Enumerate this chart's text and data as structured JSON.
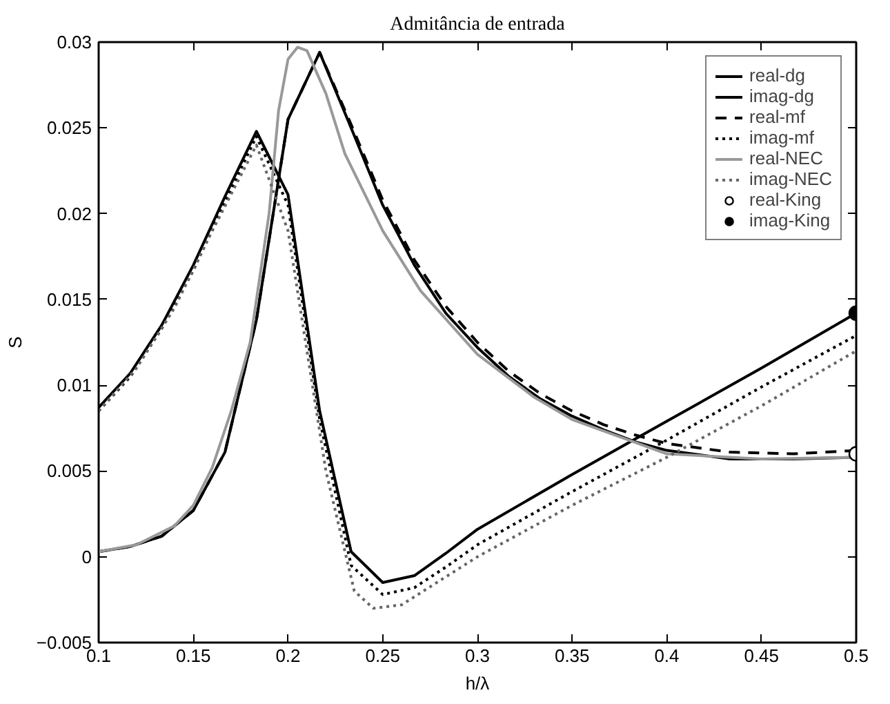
{
  "chart_data": {
    "type": "line",
    "title": "Admitância de entrada",
    "xlabel": "h/λ",
    "ylabel": "S",
    "xlim": [
      0.1,
      0.5
    ],
    "ylim": [
      -0.005,
      0.03
    ],
    "xticks": [
      0.1,
      0.15,
      0.2,
      0.25,
      0.3,
      0.35,
      0.4,
      0.45,
      0.5
    ],
    "yticks": [
      -0.005,
      0,
      0.005,
      0.01,
      0.015,
      0.02,
      0.025,
      0.03
    ],
    "grid": false,
    "legend": "top right",
    "series": [
      {
        "name": "real-dg",
        "color": "#000000",
        "line_style": "solid",
        "x": [
          0.1,
          0.1167,
          0.1333,
          0.15,
          0.1667,
          0.1833,
          0.2,
          0.2167,
          0.2333,
          0.25,
          0.2667,
          0.2833,
          0.3,
          0.3167,
          0.3333,
          0.35,
          0.3667,
          0.3833,
          0.4,
          0.4333,
          0.4667,
          0.5
        ],
        "values": [
          0.0003,
          0.0006,
          0.0012,
          0.0027,
          0.0061,
          0.0138,
          0.0255,
          0.0294,
          0.025,
          0.0205,
          0.017,
          0.0142,
          0.0122,
          0.0105,
          0.0092,
          0.0082,
          0.0074,
          0.0067,
          0.0062,
          0.0057,
          0.0057,
          0.0058
        ]
      },
      {
        "name": "imag-dg",
        "color": "#000000",
        "line_style": "solid",
        "x": [
          0.1,
          0.1167,
          0.1333,
          0.15,
          0.1667,
          0.1833,
          0.2,
          0.2167,
          0.2333,
          0.25,
          0.2667,
          0.2833,
          0.3,
          0.35,
          0.4,
          0.45,
          0.5
        ],
        "values": [
          0.0087,
          0.0107,
          0.0135,
          0.017,
          0.021,
          0.0248,
          0.0211,
          0.0085,
          0.0003,
          -0.0015,
          -0.0011,
          0.0002,
          0.0016,
          0.0048,
          0.0079,
          0.011,
          0.0142
        ]
      },
      {
        "name": "real-mf",
        "color": "#000000",
        "line_style": "dashed",
        "x": [
          0.1,
          0.1167,
          0.1333,
          0.15,
          0.1667,
          0.1833,
          0.2,
          0.2167,
          0.2333,
          0.25,
          0.2667,
          0.2833,
          0.3,
          0.3167,
          0.3333,
          0.35,
          0.3667,
          0.3833,
          0.4,
          0.4333,
          0.4667,
          0.5
        ],
        "values": [
          0.0003,
          0.0006,
          0.0012,
          0.0027,
          0.0061,
          0.0138,
          0.0255,
          0.0294,
          0.0252,
          0.0208,
          0.0173,
          0.0146,
          0.0125,
          0.0108,
          0.0095,
          0.0085,
          0.0077,
          0.0071,
          0.0066,
          0.0061,
          0.006,
          0.0062
        ]
      },
      {
        "name": "imag-mf",
        "color": "#000000",
        "line_style": "dotted",
        "x": [
          0.1,
          0.1167,
          0.1333,
          0.15,
          0.1667,
          0.1833,
          0.2,
          0.2167,
          0.2333,
          0.25,
          0.2667,
          0.2833,
          0.3,
          0.35,
          0.4,
          0.45,
          0.5
        ],
        "values": [
          0.0085,
          0.0105,
          0.0133,
          0.0167,
          0.0207,
          0.0245,
          0.0205,
          0.008,
          -0.0005,
          -0.0022,
          -0.0018,
          -0.0006,
          0.0007,
          0.0038,
          0.0068,
          0.0099,
          0.0129
        ]
      },
      {
        "name": "real-NEC",
        "color": "#999999",
        "line_style": "solid",
        "x": [
          0.1,
          0.12,
          0.14,
          0.15,
          0.16,
          0.17,
          0.18,
          0.19,
          0.195,
          0.2,
          0.205,
          0.21,
          0.22,
          0.23,
          0.25,
          0.27,
          0.3,
          0.33,
          0.35,
          0.4,
          0.45,
          0.5
        ],
        "values": [
          0.0003,
          0.0007,
          0.0018,
          0.003,
          0.0052,
          0.0085,
          0.0125,
          0.02,
          0.026,
          0.029,
          0.0297,
          0.0295,
          0.027,
          0.0235,
          0.019,
          0.0155,
          0.0118,
          0.0093,
          0.008,
          0.006,
          0.0057,
          0.0058
        ]
      },
      {
        "name": "imag-NEC",
        "color": "#666666",
        "line_style": "dotted",
        "x": [
          0.1,
          0.12,
          0.14,
          0.16,
          0.1833,
          0.2,
          0.21,
          0.22,
          0.235,
          0.245,
          0.26,
          0.28,
          0.3,
          0.35,
          0.4,
          0.45,
          0.5
        ],
        "values": [
          0.0085,
          0.011,
          0.0145,
          0.019,
          0.024,
          0.019,
          0.012,
          0.005,
          -0.002,
          -0.003,
          -0.0028,
          -0.0014,
          0,
          0.003,
          0.0058,
          0.0088,
          0.012
        ]
      },
      {
        "name": "real-King",
        "type": "scatter",
        "marker": "circle",
        "color": "#ffffff",
        "x": [
          0.5
        ],
        "values": [
          0.006
        ]
      },
      {
        "name": "imag-King",
        "type": "scatter",
        "marker": "circle",
        "color": "#000000",
        "x": [
          0.5
        ],
        "values": [
          0.0142
        ]
      }
    ]
  }
}
